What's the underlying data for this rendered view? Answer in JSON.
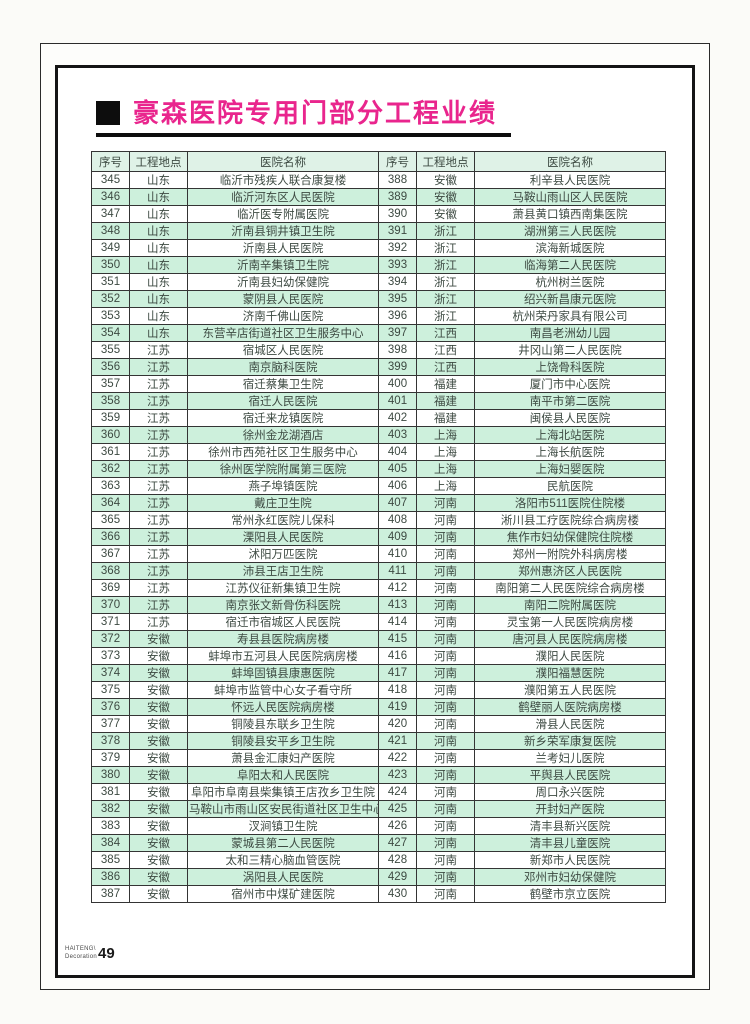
{
  "page": {
    "title": "豪森医院专用门部分工程业绩",
    "footer": {
      "brand_line1": "HAITENG\\",
      "brand_line2": "Decoration",
      "page_number": "49"
    }
  },
  "table": {
    "headers": [
      "序号",
      "工程地点",
      "医院名称",
      "序号",
      "工程地点",
      "医院名称"
    ],
    "rows_left": [
      [
        "345",
        "山东",
        "临沂市残疾人联合康复楼"
      ],
      [
        "346",
        "山东",
        "临沂河东区人民医院"
      ],
      [
        "347",
        "山东",
        "临沂医专附属医院"
      ],
      [
        "348",
        "山东",
        "沂南县铜井镇卫生院"
      ],
      [
        "349",
        "山东",
        "沂南县人民医院"
      ],
      [
        "350",
        "山东",
        "沂南辛集镇卫生院"
      ],
      [
        "351",
        "山东",
        "沂南县妇幼保健院"
      ],
      [
        "352",
        "山东",
        "蒙阴县人民医院"
      ],
      [
        "353",
        "山东",
        "济南千佛山医院"
      ],
      [
        "354",
        "山东",
        "东营辛店街道社区卫生服务中心"
      ],
      [
        "355",
        "江苏",
        "宿城区人民医院"
      ],
      [
        "356",
        "江苏",
        "南京脑科医院"
      ],
      [
        "357",
        "江苏",
        "宿迁蔡集卫生院"
      ],
      [
        "358",
        "江苏",
        "宿迁人民医院"
      ],
      [
        "359",
        "江苏",
        "宿迁来龙镇医院"
      ],
      [
        "360",
        "江苏",
        "徐州金龙湖酒店"
      ],
      [
        "361",
        "江苏",
        "徐州市西苑社区卫生服务中心"
      ],
      [
        "362",
        "江苏",
        "徐州医学院附属第三医院"
      ],
      [
        "363",
        "江苏",
        "燕子埠镇医院"
      ],
      [
        "364",
        "江苏",
        "戴庄卫生院"
      ],
      [
        "365",
        "江苏",
        "常州永红医院儿保科"
      ],
      [
        "366",
        "江苏",
        "溧阳县人民医院"
      ],
      [
        "367",
        "江苏",
        "沭阳万匹医院"
      ],
      [
        "368",
        "江苏",
        "沛县王店卫生院"
      ],
      [
        "369",
        "江苏",
        "江苏仪征新集镇卫生院"
      ],
      [
        "370",
        "江苏",
        "南京张文新骨伤科医院"
      ],
      [
        "371",
        "江苏",
        "宿迁市宿城区人民医院"
      ],
      [
        "372",
        "安徽",
        "寿县县医院病房楼"
      ],
      [
        "373",
        "安徽",
        "蚌埠市五河县人民医院病房楼"
      ],
      [
        "374",
        "安徽",
        "蚌埠固镇县康惠医院"
      ],
      [
        "375",
        "安徽",
        "蚌埠市监管中心女子看守所"
      ],
      [
        "376",
        "安徽",
        "怀远人民医院病房楼"
      ],
      [
        "377",
        "安徽",
        "铜陵县东联乡卫生院"
      ],
      [
        "378",
        "安徽",
        "铜陵县安平乡卫生院"
      ],
      [
        "379",
        "安徽",
        "萧县金汇康妇产医院"
      ],
      [
        "380",
        "安徽",
        "阜阳太和人民医院"
      ],
      [
        "381",
        "安徽",
        "阜阳市阜南县柴集镇王店孜乡卫生院"
      ],
      [
        "382",
        "安徽",
        "马鞍山市雨山区安民街道社区卫生中心"
      ],
      [
        "383",
        "安徽",
        "汊涧镇卫生院"
      ],
      [
        "384",
        "安徽",
        "蒙城县第二人民医院"
      ],
      [
        "385",
        "安徽",
        "太和三精心脑血管医院"
      ],
      [
        "386",
        "安徽",
        "涡阳县人民医院"
      ],
      [
        "387",
        "安徽",
        "宿州市中煤矿建医院"
      ]
    ],
    "rows_right": [
      [
        "388",
        "安徽",
        "利辛县人民医院"
      ],
      [
        "389",
        "安徽",
        "马鞍山雨山区人民医院"
      ],
      [
        "390",
        "安徽",
        "萧县黄口镇西南集医院"
      ],
      [
        "391",
        "浙江",
        "湖洲第三人民医院"
      ],
      [
        "392",
        "浙江",
        "滨海新城医院"
      ],
      [
        "393",
        "浙江",
        "临海第二人民医院"
      ],
      [
        "394",
        "浙江",
        "杭州树兰医院"
      ],
      [
        "395",
        "浙江",
        "绍兴新昌康元医院"
      ],
      [
        "396",
        "浙江",
        "杭州荣丹家具有限公司"
      ],
      [
        "397",
        "江西",
        "南昌老洲幼儿园"
      ],
      [
        "398",
        "江西",
        "井冈山第二人民医院"
      ],
      [
        "399",
        "江西",
        "上饶骨科医院"
      ],
      [
        "400",
        "福建",
        "厦门市中心医院"
      ],
      [
        "401",
        "福建",
        "南平市第二医院"
      ],
      [
        "402",
        "福建",
        "闽侯县人民医院"
      ],
      [
        "403",
        "上海",
        "上海北站医院"
      ],
      [
        "404",
        "上海",
        "上海长航医院"
      ],
      [
        "405",
        "上海",
        "上海妇婴医院"
      ],
      [
        "406",
        "上海",
        "民航医院"
      ],
      [
        "407",
        "河南",
        "洛阳市511医院住院楼"
      ],
      [
        "408",
        "河南",
        "淅川县工疗医院综合病房楼"
      ],
      [
        "409",
        "河南",
        "焦作市妇幼保健院住院楼"
      ],
      [
        "410",
        "河南",
        "郑州一附院外科病房楼"
      ],
      [
        "411",
        "河南",
        "郑州惠济区人民医院"
      ],
      [
        "412",
        "河南",
        "南阳第二人民医院综合病房楼"
      ],
      [
        "413",
        "河南",
        "南阳二院附属医院"
      ],
      [
        "414",
        "河南",
        "灵宝第一人民医院病房楼"
      ],
      [
        "415",
        "河南",
        "唐河县人民医院病房楼"
      ],
      [
        "416",
        "河南",
        "濮阳人民医院"
      ],
      [
        "417",
        "河南",
        "濮阳福慧医院"
      ],
      [
        "418",
        "河南",
        "濮阳第五人民医院"
      ],
      [
        "419",
        "河南",
        "鹤壁丽人医院病房楼"
      ],
      [
        "420",
        "河南",
        "滑县人民医院"
      ],
      [
        "421",
        "河南",
        "新乡荣军康复医院"
      ],
      [
        "422",
        "河南",
        "兰考妇儿医院"
      ],
      [
        "423",
        "河南",
        "平舆县人民医院"
      ],
      [
        "424",
        "河南",
        "周口永兴医院"
      ],
      [
        "425",
        "河南",
        "开封妇产医院"
      ],
      [
        "426",
        "河南",
        "清丰县新兴医院"
      ],
      [
        "427",
        "河南",
        "清丰县儿童医院"
      ],
      [
        "428",
        "河南",
        "新郑市人民医院"
      ],
      [
        "429",
        "河南",
        "邓州市妇幼保健院"
      ],
      [
        "430",
        "河南",
        "鹤壁市京立医院"
      ]
    ]
  },
  "colors": {
    "title_pink": "#e9258d",
    "header_green": "#dff2e7",
    "alt_row_green": "#cdf0dc",
    "border_dark": "#343434",
    "text": "#3d4a42"
  }
}
